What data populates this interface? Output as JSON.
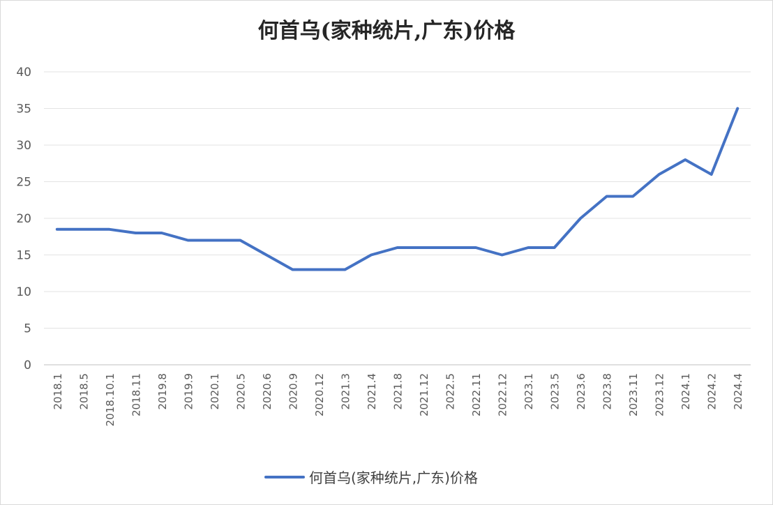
{
  "chart_data": {
    "type": "line",
    "title": "何首乌(家种统片,广东)价格",
    "categories": [
      "2018.1",
      "2018.5",
      "2018.10.1",
      "2018.11",
      "2019.8",
      "2019.9",
      "2020.1",
      "2020.5",
      "2020.6",
      "2020.9",
      "2020.12",
      "2021.3",
      "2021.4",
      "2021.8",
      "2021.12",
      "2022.5",
      "2022.11",
      "2022.12",
      "2023.1",
      "2023.5",
      "2023.6",
      "2023.8",
      "2023.11",
      "2023.12",
      "2024.1",
      "2024.2",
      "2024.4"
    ],
    "series": [
      {
        "name": "何首乌(家种统片,广东)价格",
        "color": "#4472c4",
        "values": [
          18.5,
          18.5,
          18.5,
          18,
          18,
          17,
          17,
          17,
          15,
          13,
          13,
          13,
          15,
          16,
          16,
          16,
          16,
          15,
          16,
          16,
          20,
          23,
          23,
          26,
          28,
          26,
          35
        ]
      }
    ],
    "ylim": [
      0,
      40
    ],
    "yticks": [
      0,
      5,
      10,
      15,
      20,
      25,
      30,
      35,
      40
    ],
    "grid": true,
    "legend_position": "bottom",
    "xlabel": "",
    "ylabel": ""
  }
}
